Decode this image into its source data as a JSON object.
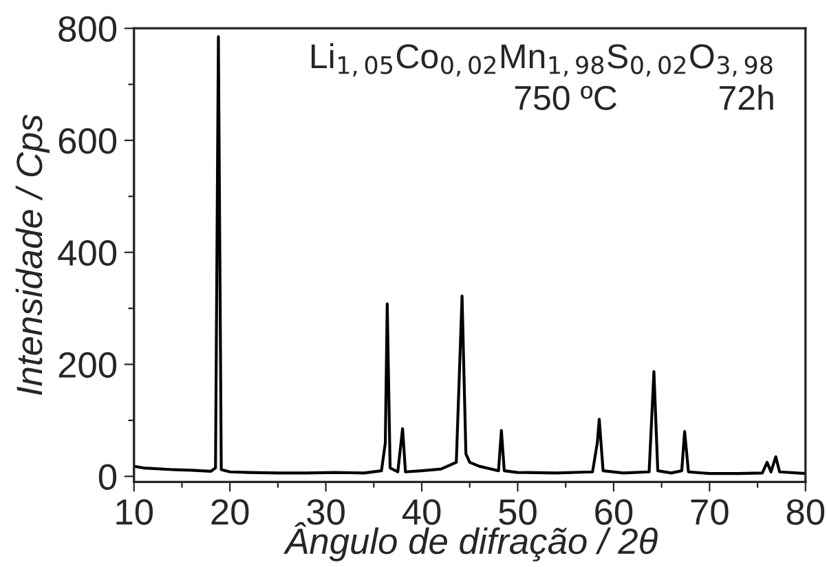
{
  "chart_data": {
    "type": "line",
    "xlabel": "Ângulo de difração / 2θ",
    "ylabel": "Intensidade / Cps",
    "annotations": [
      "Li$_{1,05}$Co$_{0,02}$Mn$_{1,98}$S$_{0,02}$O$_{3,98}$",
      "750 ºC",
      "72h"
    ],
    "x": [
      10,
      11,
      12,
      14,
      16,
      18,
      18.5,
      18.8,
      19.1,
      20,
      22,
      25,
      28,
      31,
      34,
      35.8,
      36.2,
      36.4,
      36.7,
      37.5,
      38.0,
      38.3,
      40,
      42,
      43.6,
      44.2,
      44.6,
      45,
      46,
      47.5,
      48.0,
      48.3,
      48.6,
      50,
      54,
      57.8,
      58.3,
      58.5,
      58.9,
      61,
      63.7,
      64.2,
      64.6,
      66,
      67.1,
      67.4,
      67.8,
      70,
      73,
      75.5,
      76.0,
      76.4,
      76.9,
      77.3,
      80
    ],
    "series": [
      {
        "color": "#000000",
        "values": [
          18,
          15,
          14,
          12,
          11,
          9,
          15,
          785,
          12,
          8,
          7,
          6,
          6,
          7,
          6,
          10,
          60,
          308,
          15,
          8,
          85,
          8,
          10,
          13,
          25,
          322,
          40,
          25,
          18,
          12,
          10,
          82,
          10,
          7,
          6,
          8,
          60,
          102,
          10,
          6,
          8,
          187,
          10,
          6,
          10,
          80,
          8,
          5,
          5,
          6,
          25,
          8,
          35,
          8,
          5
        ]
      }
    ],
    "xlim": [
      10,
      80
    ],
    "ylim": [
      -10,
      800
    ],
    "xticks": [
      10,
      {
        "value": 15,
        "label": null
      },
      20,
      {
        "value": 25,
        "label": null
      },
      30,
      {
        "value": 35,
        "label": null
      },
      40,
      {
        "value": 45,
        "label": null
      },
      50,
      {
        "value": 55,
        "label": null
      },
      60,
      {
        "value": 65,
        "label": null
      },
      70,
      {
        "value": 75,
        "label": null
      },
      80
    ],
    "yticks": [
      0,
      {
        "value": 100,
        "label": null
      },
      200,
      {
        "value": 300,
        "label": null
      },
      400,
      {
        "value": 500,
        "label": null
      },
      600,
      {
        "value": 700,
        "label": null
      },
      800
    ],
    "grid": false,
    "legend": false,
    "marker": "none",
    "line_style": "solid"
  }
}
